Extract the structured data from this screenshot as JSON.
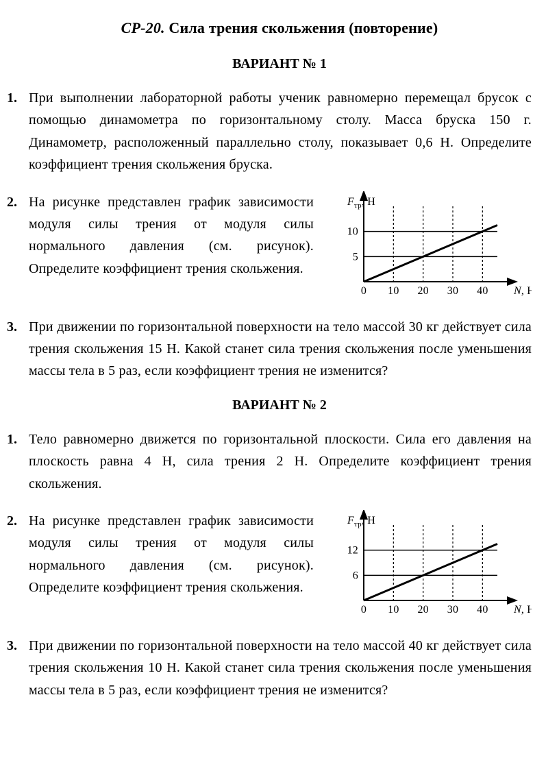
{
  "title": {
    "prefix": "СР-20.",
    "rest": " Сила трения скольжения (повторение)"
  },
  "variants": [
    {
      "heading": "ВАРИАНТ № 1",
      "problems": [
        {
          "n": "1.",
          "text": "При выполнении лабораторной работы ученик равномерно перемещал брусок с помощью динамометра по горизонтальному столу. Масса бруска 150 г. Динамометр, расположенный параллельно столу, показывает 0,6 Н. Определите коэффициент трения скольжения бруска."
        },
        {
          "n": "2.",
          "text": "На рисунке представлен график зависимости модуля силы трения от модуля силы нормального давления (см. рисунок). Определите коэффициент трения скольжения.",
          "chart": {
            "type": "line",
            "y_label": "Fтр, Н",
            "x_label": "N, Н",
            "x_ticks": [
              0,
              10,
              20,
              30,
              40
            ],
            "y_ticks": [
              5,
              10
            ],
            "y_tick_labels": [
              "5",
              "10"
            ],
            "xlim": [
              0,
              45
            ],
            "ylim": [
              0,
              15
            ],
            "grid_x": [
              10,
              20,
              30,
              40
            ],
            "grid_y": [
              5,
              10
            ],
            "line": {
              "points": [
                [
                  0,
                  0
                ],
                [
                  45,
                  11.25
                ]
              ],
              "stroke": "#000000",
              "width": 3
            },
            "axis_color": "#000000",
            "grid_dash": "3,3",
            "grid_color": "#000000",
            "background_color": "#ffffff",
            "font_size": 16
          }
        },
        {
          "n": "3.",
          "text": "При движении по горизонтальной поверхности на тело массой 30 кг действует сила трения скольжения 15 Н. Какой станет сила трения скольжения после уменьшения массы тела в 5 раз, если коэффициент трения не изменится?"
        }
      ]
    },
    {
      "heading": "ВАРИАНТ № 2",
      "problems": [
        {
          "n": "1.",
          "text": "Тело равномерно движется по горизонтальной плоскости. Сила его давления на плоскость равна 4 Н, сила трения 2 Н. Определите коэффициент трения скольжения."
        },
        {
          "n": "2.",
          "text": "На рисунке представлен график зависимости модуля силы трения от модуля силы нормального давления (см. рисунок). Определите коэффициент трения скольжения.",
          "chart": {
            "type": "line",
            "y_label": "Fтр, Н",
            "x_label": "N, Н",
            "x_ticks": [
              0,
              10,
              20,
              30,
              40
            ],
            "y_ticks": [
              6,
              12
            ],
            "y_tick_labels": [
              "6",
              "12"
            ],
            "xlim": [
              0,
              45
            ],
            "ylim": [
              0,
              18
            ],
            "grid_x": [
              10,
              20,
              30,
              40
            ],
            "grid_y": [
              6,
              12
            ],
            "line": {
              "points": [
                [
                  0,
                  0
                ],
                [
                  45,
                  13.5
                ]
              ],
              "stroke": "#000000",
              "width": 3
            },
            "axis_color": "#000000",
            "grid_dash": "3,3",
            "grid_color": "#000000",
            "background_color": "#ffffff",
            "font_size": 16
          }
        },
        {
          "n": "3.",
          "text": "При движении по горизонтальной поверхности на тело массой 40 кг действует сила трения скольжения 10 Н. Какой станет сила трения скольжения после уменьшения массы тела в 5 раз, если коэффициент трения не изменится?"
        }
      ]
    }
  ]
}
